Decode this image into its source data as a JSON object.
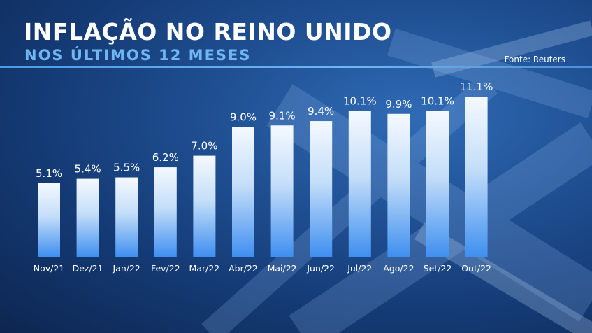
{
  "header": {
    "title": "INFLAÇÃO NO REINO UNIDO",
    "subtitle": "NOS ÚLTIMOS 12 MESES",
    "source": "Fonte: Reuters"
  },
  "colors": {
    "title": "#ffffff",
    "subtitle": "#6fb6f2",
    "bar_top": "#f4f9ff",
    "bar_bottom": "#3f8ff0"
  },
  "chart_data": {
    "type": "bar",
    "title": "INFLAÇÃO NO REINO UNIDO",
    "subtitle": "NOS ÚLTIMOS 12 MESES",
    "source": "Fonte: Reuters",
    "categories": [
      "Nov/21",
      "Dez/21",
      "Jan/22",
      "Fev/22",
      "Mar/22",
      "Abr/22",
      "Mai/22",
      "Jun/22",
      "Jul/22",
      "Ago/22",
      "Set/22",
      "Out/22"
    ],
    "values": [
      5.1,
      5.4,
      5.5,
      6.2,
      7.0,
      9.0,
      9.1,
      9.4,
      10.1,
      9.9,
      10.1,
      11.1
    ],
    "labels": [
      "5.1%",
      "5.4%",
      "5.5%",
      "6.2%",
      "7.0%",
      "9.0%",
      "9.1%",
      "9.4%",
      "10.1%",
      "9.9%",
      "10.1%",
      "11.1%"
    ],
    "unit": "%",
    "xlabel": "",
    "ylabel": "",
    "grid": false,
    "legend": "none"
  }
}
